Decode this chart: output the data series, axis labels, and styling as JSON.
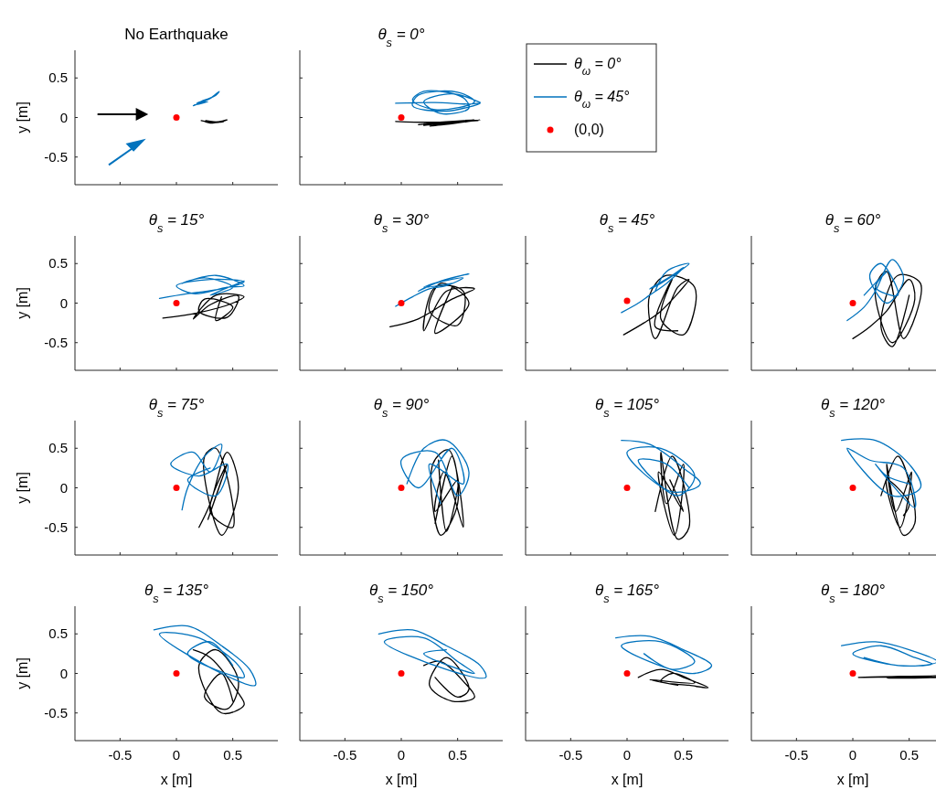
{
  "chart_data": [
    {
      "type": "line",
      "title": "No Earthquake",
      "ylabel": "y [m]",
      "xlim": [
        -0.9,
        0.9
      ],
      "ylim": [
        -0.85,
        0.85
      ],
      "xticks": [
        -0.5,
        0,
        0.5
      ],
      "yticks": [
        -0.5,
        0,
        0.5
      ],
      "tick_labels": "y",
      "series": [
        {
          "color": "#000000",
          "x": [
            0.22,
            0.3,
            0.4,
            0.45,
            0.35,
            0.25,
            0.3,
            0.42,
            0.38,
            0.26
          ],
          "values": [
            -0.04,
            -0.06,
            -0.05,
            -0.03,
            -0.06,
            -0.05,
            -0.07,
            -0.05,
            -0.06,
            -0.04
          ]
        },
        {
          "color": "#0072bd",
          "x": [
            0.15,
            0.22,
            0.3,
            0.38,
            0.35,
            0.25,
            0.18,
            0.28,
            0.2,
            0.16
          ],
          "values": [
            0.15,
            0.19,
            0.24,
            0.33,
            0.28,
            0.22,
            0.18,
            0.2,
            0.17,
            0.16
          ]
        },
        {
          "type": "scatter",
          "marker": "circle",
          "color": "#ff0000",
          "x": [
            0
          ],
          "values": [
            0
          ]
        }
      ]
    },
    {
      "type": "line",
      "title": "θ$_{s}$ = 0°",
      "xlim": [
        -0.9,
        0.9
      ],
      "ylim": [
        -0.85,
        0.85
      ],
      "xticks": [
        -0.5,
        0,
        0.5
      ],
      "yticks": [
        -0.5,
        0,
        0.5
      ],
      "tick_labels": false,
      "legend": "right",
      "series": [
        {
          "name": "θ$_{ω}$ = 0°",
          "color": "#000000",
          "x": [
            -0.05,
            0.3,
            0.65,
            0.2,
            0.6,
            0.15,
            0.7,
            0.25,
            0.55,
            0.2,
            0.68,
            0.35
          ],
          "values": [
            -0.05,
            -0.06,
            -0.03,
            -0.1,
            -0.04,
            -0.09,
            -0.03,
            -0.11,
            -0.05,
            -0.08,
            -0.04,
            -0.07
          ]
        },
        {
          "name": "θ$_{ω}$ = 45°",
          "color": "#0072bd",
          "x": [
            -0.05,
            0.3,
            0.6,
            0.7,
            0.4,
            0.1,
            0.15,
            0.5,
            0.65,
            0.3,
            0.1,
            0.2,
            0.55,
            0.6,
            0.35,
            0.2,
            0.45,
            0.7
          ],
          "values": [
            0.18,
            0.19,
            0.17,
            0.18,
            0.08,
            0.15,
            0.28,
            0.32,
            0.2,
            0.1,
            0.22,
            0.33,
            0.25,
            0.12,
            0.05,
            0.2,
            0.3,
            0.19
          ]
        },
        {
          "name": "(0,0)",
          "type": "scatter",
          "marker": "circle",
          "color": "#ff0000",
          "x": [
            0
          ],
          "values": [
            0
          ]
        }
      ]
    },
    {
      "type": "line",
      "title": "θ$_{s}$ = 15°",
      "ylabel": "y [m]",
      "xlim": [
        -0.9,
        0.9
      ],
      "ylim": [
        -0.85,
        0.85
      ],
      "xticks": [
        -0.5,
        0,
        0.5
      ],
      "yticks": [
        -0.5,
        0,
        0.5
      ],
      "tick_labels": "y",
      "series": [
        {
          "color": "#000000",
          "x": [
            -0.12,
            0.2,
            0.5,
            0.6,
            0.35,
            0.15,
            0.3,
            0.55,
            0.45,
            0.2,
            0.25,
            0.5,
            0.35,
            0.4
          ],
          "values": [
            -0.19,
            -0.12,
            0.0,
            0.08,
            0.1,
            -0.2,
            -0.02,
            0.09,
            -0.18,
            -0.1,
            0.05,
            -0.05,
            -0.22,
            0.08
          ]
        },
        {
          "color": "#0072bd",
          "x": [
            -0.15,
            0.1,
            0.4,
            0.6,
            0.3,
            0.0,
            0.15,
            0.45,
            0.6,
            0.35,
            0.05,
            0.25,
            0.5,
            0.3,
            0.6
          ],
          "values": [
            0.06,
            0.12,
            0.18,
            0.27,
            0.3,
            0.22,
            0.12,
            0.2,
            0.22,
            0.35,
            0.25,
            0.32,
            0.2,
            0.1,
            0.28
          ]
        },
        {
          "type": "scatter",
          "marker": "circle",
          "color": "#ff0000",
          "x": [
            0
          ],
          "values": [
            0
          ]
        }
      ]
    },
    {
      "type": "line",
      "title": "θ$_{s}$ = 30°",
      "xlim": [
        -0.9,
        0.9
      ],
      "ylim": [
        -0.85,
        0.85
      ],
      "xticks": [
        -0.5,
        0,
        0.5
      ],
      "yticks": [
        -0.5,
        0,
        0.5
      ],
      "tick_labels": false,
      "series": [
        {
          "color": "#000000",
          "x": [
            -0.1,
            0.15,
            0.45,
            0.65,
            0.4,
            0.2,
            0.3,
            0.55,
            0.5,
            0.25,
            0.35,
            0.6,
            0.3,
            0.45
          ],
          "values": [
            -0.3,
            -0.2,
            0.05,
            0.18,
            0.15,
            -0.35,
            0.2,
            0.15,
            -0.28,
            -0.1,
            0.25,
            0.0,
            -0.38,
            0.2
          ]
        },
        {
          "color": "#0072bd",
          "x": [
            -0.05,
            0.1,
            0.25,
            0.4,
            0.55,
            0.3,
            0.15,
            0.35,
            0.6,
            0.4,
            0.2,
            0.45
          ],
          "values": [
            -0.04,
            0.08,
            0.18,
            0.22,
            0.32,
            0.25,
            0.15,
            0.28,
            0.37,
            0.3,
            0.2,
            0.25
          ]
        },
        {
          "type": "scatter",
          "marker": "circle",
          "color": "#ff0000",
          "x": [
            0
          ],
          "values": [
            0
          ]
        }
      ]
    },
    {
      "type": "line",
      "title": "θ$_{s}$ = 45°",
      "xlim": [
        -0.9,
        0.9
      ],
      "ylim": [
        -0.85,
        0.85
      ],
      "xticks": [
        -0.5,
        0,
        0.5
      ],
      "yticks": [
        -0.5,
        0,
        0.5
      ],
      "tick_labels": false,
      "series": [
        {
          "color": "#000000",
          "x": [
            -0.03,
            0.15,
            0.3,
            0.55,
            0.45,
            0.25,
            0.2,
            0.35,
            0.6,
            0.5,
            0.3,
            0.4,
            0.25,
            0.45
          ],
          "values": [
            -0.4,
            -0.25,
            -0.1,
            0.3,
            0.2,
            -0.45,
            0.1,
            0.35,
            0.2,
            -0.4,
            -0.2,
            0.3,
            -0.3,
            -0.35
          ]
        },
        {
          "color": "#0072bd",
          "x": [
            -0.05,
            0.1,
            0.2,
            0.35,
            0.5,
            0.4,
            0.2,
            0.3,
            0.55,
            0.35,
            0.25
          ],
          "values": [
            -0.12,
            0.0,
            0.1,
            0.25,
            0.45,
            0.35,
            0.18,
            0.25,
            0.5,
            0.4,
            0.15
          ]
        },
        {
          "type": "scatter",
          "marker": "circle",
          "color": "#ff0000",
          "x": [
            0
          ],
          "values": [
            0.03
          ]
        }
      ]
    },
    {
      "type": "line",
      "title": "θ$_{s}$ = 60°",
      "xlim": [
        -0.9,
        0.9
      ],
      "ylim": [
        -0.85,
        0.85
      ],
      "xticks": [
        -0.5,
        0,
        0.5
      ],
      "yticks": [
        -0.5,
        0,
        0.5
      ],
      "tick_labels": false,
      "series": [
        {
          "color": "#000000",
          "x": [
            0.0,
            0.15,
            0.3,
            0.5,
            0.55,
            0.35,
            0.2,
            0.3,
            0.45,
            0.6,
            0.4,
            0.25,
            0.35,
            0.5
          ],
          "values": [
            -0.45,
            -0.3,
            -0.1,
            0.3,
            0.05,
            -0.5,
            0.2,
            0.4,
            -0.45,
            0.25,
            0.35,
            -0.3,
            -0.55,
            0.1
          ]
        },
        {
          "color": "#0072bd",
          "x": [
            -0.05,
            0.1,
            0.2,
            0.35,
            0.45,
            0.3,
            0.15,
            0.25,
            0.4,
            0.2,
            0.3,
            0.1
          ],
          "values": [
            -0.22,
            -0.05,
            0.15,
            0.55,
            0.3,
            0.0,
            0.35,
            0.5,
            0.1,
            0.2,
            0.4,
            0.1
          ]
        },
        {
          "type": "scatter",
          "marker": "circle",
          "color": "#ff0000",
          "x": [
            0
          ],
          "values": [
            0
          ]
        }
      ]
    },
    {
      "type": "line",
      "title": "θ$_{s}$ = 75°",
      "ylabel": "y [m]",
      "xlim": [
        -0.9,
        0.9
      ],
      "ylim": [
        -0.85,
        0.85
      ],
      "xticks": [
        -0.5,
        0,
        0.5
      ],
      "yticks": [
        -0.5,
        0,
        0.5
      ],
      "tick_labels": "y",
      "series": [
        {
          "color": "#000000",
          "x": [
            0.2,
            0.3,
            0.45,
            0.55,
            0.4,
            0.25,
            0.35,
            0.5,
            0.3,
            0.45,
            0.28,
            0.4
          ],
          "values": [
            -0.5,
            -0.2,
            0.45,
            0.0,
            -0.6,
            0.4,
            0.5,
            -0.5,
            -0.3,
            0.3,
            -0.4,
            0.1
          ]
        },
        {
          "color": "#0072bd",
          "x": [
            0.05,
            0.1,
            0.25,
            0.4,
            0.3,
            0.15,
            -0.05,
            0.2,
            0.45,
            0.35,
            0.1,
            0.3
          ],
          "values": [
            -0.28,
            0.0,
            0.4,
            0.55,
            0.2,
            0.45,
            0.3,
            0.15,
            0.3,
            -0.1,
            0.1,
            0.25
          ]
        },
        {
          "type": "scatter",
          "marker": "circle",
          "color": "#ff0000",
          "x": [
            0
          ],
          "values": [
            0
          ]
        }
      ]
    },
    {
      "type": "line",
      "title": "θ$_{s}$ = 90°",
      "xlim": [
        -0.9,
        0.9
      ],
      "ylim": [
        -0.85,
        0.85
      ],
      "xticks": [
        -0.5,
        0,
        0.5
      ],
      "yticks": [
        -0.5,
        0,
        0.5
      ],
      "tick_labels": false,
      "series": [
        {
          "color": "#000000",
          "x": [
            0.3,
            0.45,
            0.5,
            0.35,
            0.28,
            0.42,
            0.55,
            0.38,
            0.3,
            0.5,
            0.4,
            0.33
          ],
          "values": [
            -0.45,
            0.4,
            -0.2,
            -0.6,
            0.3,
            0.48,
            -0.5,
            0.2,
            -0.3,
            0.1,
            -0.55,
            0.35
          ]
        },
        {
          "color": "#0072bd",
          "x": [
            0.05,
            0.2,
            0.4,
            0.6,
            0.5,
            0.3,
            0.0,
            0.15,
            0.45,
            0.55,
            0.25,
            0.35
          ],
          "values": [
            0.05,
            0.5,
            0.6,
            0.2,
            -0.1,
            0.45,
            0.35,
            0.0,
            0.5,
            0.05,
            0.3,
            -0.2
          ]
        },
        {
          "type": "scatter",
          "marker": "circle",
          "color": "#ff0000",
          "x": [
            0
          ],
          "values": [
            0
          ]
        }
      ]
    },
    {
      "type": "line",
      "title": "θ$_{s}$ = 105°",
      "xlim": [
        -0.9,
        0.9
      ],
      "ylim": [
        -0.85,
        0.85
      ],
      "xticks": [
        -0.5,
        0,
        0.5
      ],
      "yticks": [
        -0.5,
        0,
        0.5
      ],
      "tick_labels": false,
      "series": [
        {
          "color": "#000000",
          "x": [
            0.25,
            0.4,
            0.55,
            0.45,
            0.3,
            0.35,
            0.5,
            0.42,
            0.28,
            0.5,
            0.38
          ],
          "values": [
            -0.3,
            0.4,
            -0.5,
            -0.65,
            0.45,
            -0.2,
            0.3,
            -0.6,
            0.2,
            -0.3,
            0.1
          ]
        },
        {
          "color": "#0072bd",
          "x": [
            -0.05,
            0.2,
            0.5,
            0.65,
            0.4,
            0.0,
            0.3,
            0.6,
            0.45,
            0.1,
            0.35,
            0.55
          ],
          "values": [
            0.6,
            0.55,
            0.25,
            0.05,
            -0.05,
            0.45,
            0.5,
            0.15,
            -0.1,
            0.35,
            0.3,
            0.0
          ]
        },
        {
          "type": "scatter",
          "marker": "circle",
          "color": "#ff0000",
          "x": [
            0
          ],
          "values": [
            0
          ]
        }
      ]
    },
    {
      "type": "line",
      "title": "θ$_{s}$ = 120°",
      "xlim": [
        -0.9,
        0.9
      ],
      "ylim": [
        -0.85,
        0.85
      ],
      "xticks": [
        -0.5,
        0,
        0.5
      ],
      "yticks": [
        -0.5,
        0,
        0.5
      ],
      "tick_labels": false,
      "series": [
        {
          "color": "#000000",
          "x": [
            0.25,
            0.4,
            0.55,
            0.45,
            0.3,
            0.38,
            0.52,
            0.42,
            0.3,
            0.5,
            0.45
          ],
          "values": [
            -0.1,
            0.4,
            -0.45,
            -0.6,
            0.3,
            -0.3,
            0.2,
            -0.5,
            0.1,
            -0.2,
            -0.35
          ]
        },
        {
          "color": "#0072bd",
          "x": [
            -0.1,
            0.2,
            0.5,
            0.6,
            0.35,
            -0.05,
            0.15,
            0.45,
            0.55,
            0.2,
            0.3,
            0.5
          ],
          "values": [
            0.6,
            0.6,
            0.3,
            0.0,
            -0.1,
            0.5,
            0.35,
            0.25,
            -0.25,
            0.3,
            0.15,
            0.05
          ]
        },
        {
          "type": "scatter",
          "marker": "circle",
          "color": "#ff0000",
          "x": [
            0
          ],
          "values": [
            0
          ]
        }
      ]
    },
    {
      "type": "line",
      "title": "θ$_{s}$ = 135°",
      "xlabel": "x [m]",
      "ylabel": "y [m]",
      "xlim": [
        -0.9,
        0.9
      ],
      "ylim": [
        -0.85,
        0.85
      ],
      "xticks": [
        -0.5,
        0,
        0.5
      ],
      "yticks": [
        -0.5,
        0,
        0.5
      ],
      "series": [
        {
          "color": "#000000",
          "x": [
            0.15,
            0.3,
            0.55,
            0.6,
            0.4,
            0.2,
            0.35,
            0.55,
            0.45,
            0.25,
            0.4,
            0.5
          ],
          "values": [
            0.3,
            0.2,
            -0.25,
            -0.4,
            -0.5,
            0.1,
            0.3,
            -0.1,
            -0.45,
            -0.3,
            0.0,
            -0.35
          ]
        },
        {
          "color": "#0072bd",
          "x": [
            -0.2,
            0.1,
            0.4,
            0.65,
            0.7,
            0.4,
            -0.15,
            0.2,
            0.55,
            0.6,
            0.1,
            0.3,
            0.5
          ],
          "values": [
            0.55,
            0.6,
            0.35,
            0.05,
            -0.15,
            0.0,
            0.5,
            0.45,
            0.1,
            -0.05,
            0.25,
            0.4,
            0.1
          ]
        },
        {
          "type": "scatter",
          "marker": "circle",
          "color": "#ff0000",
          "x": [
            0
          ],
          "values": [
            0
          ]
        }
      ]
    },
    {
      "type": "line",
      "title": "θ$_{s}$ = 150°",
      "xlabel": "x [m]",
      "xlim": [
        -0.9,
        0.9
      ],
      "ylim": [
        -0.85,
        0.85
      ],
      "xticks": [
        -0.5,
        0,
        0.5
      ],
      "yticks": [
        -0.5,
        0,
        0.5
      ],
      "tick_labels": "x",
      "series": [
        {
          "color": "#000000",
          "x": [
            0.2,
            0.35,
            0.55,
            0.65,
            0.45,
            0.25,
            0.4,
            0.6,
            0.5,
            0.3
          ],
          "values": [
            0.1,
            0.15,
            -0.1,
            -0.3,
            -0.35,
            -0.15,
            0.2,
            -0.2,
            -0.3,
            -0.05
          ]
        },
        {
          "color": "#0072bd",
          "x": [
            -0.2,
            0.1,
            0.4,
            0.7,
            0.75,
            0.4,
            -0.15,
            0.2,
            0.5,
            0.65,
            0.2,
            0.4
          ],
          "values": [
            0.5,
            0.55,
            0.35,
            0.1,
            -0.05,
            0.05,
            0.4,
            0.45,
            0.15,
            0.0,
            0.25,
            0.3
          ]
        },
        {
          "type": "scatter",
          "marker": "circle",
          "color": "#ff0000",
          "x": [
            0
          ],
          "values": [
            0
          ]
        }
      ]
    },
    {
      "type": "line",
      "title": "θ$_{s}$ = 165°",
      "xlabel": "x [m]",
      "xlim": [
        -0.9,
        0.9
      ],
      "ylim": [
        -0.85,
        0.85
      ],
      "xticks": [
        -0.5,
        0,
        0.5
      ],
      "yticks": [
        -0.5,
        0,
        0.5
      ],
      "tick_labels": "x",
      "series": [
        {
          "color": "#000000",
          "x": [
            0.1,
            0.3,
            0.5,
            0.72,
            0.55,
            0.3,
            0.4,
            0.6,
            0.2,
            0.45
          ],
          "values": [
            -0.05,
            0.05,
            -0.05,
            -0.18,
            -0.15,
            -0.1,
            0.0,
            -0.12,
            -0.08,
            -0.15
          ]
        },
        {
          "color": "#0072bd",
          "x": [
            -0.1,
            0.2,
            0.5,
            0.75,
            0.6,
            0.2,
            -0.05,
            0.3,
            0.6,
            0.4,
            0.15
          ],
          "values": [
            0.45,
            0.47,
            0.3,
            0.1,
            0.0,
            0.15,
            0.35,
            0.4,
            0.15,
            0.05,
            0.25
          ]
        },
        {
          "type": "scatter",
          "marker": "circle",
          "color": "#ff0000",
          "x": [
            0
          ],
          "values": [
            0
          ]
        }
      ]
    },
    {
      "type": "line",
      "title": "θ$_{s}$ = 180°",
      "xlabel": "x [m]",
      "xlim": [
        -0.9,
        0.9
      ],
      "ylim": [
        -0.85,
        0.85
      ],
      "xticks": [
        -0.5,
        0,
        0.5
      ],
      "yticks": [
        -0.5,
        0,
        0.5
      ],
      "tick_labels": "x",
      "series": [
        {
          "color": "#000000",
          "x": [
            0.05,
            0.4,
            0.8,
            0.3,
            0.75,
            0.1,
            0.6
          ],
          "values": [
            -0.05,
            -0.04,
            -0.05,
            -0.06,
            -0.03,
            -0.05,
            -0.04
          ]
        },
        {
          "color": "#0072bd",
          "x": [
            -0.1,
            0.2,
            0.5,
            0.75,
            0.6,
            0.3,
            0.0,
            0.25,
            0.55,
            0.7,
            0.4,
            0.1
          ],
          "values": [
            0.35,
            0.4,
            0.3,
            0.15,
            0.1,
            0.12,
            0.25,
            0.35,
            0.2,
            0.12,
            0.1,
            0.2
          ]
        },
        {
          "type": "scatter",
          "marker": "circle",
          "color": "#ff0000",
          "x": [
            0
          ],
          "values": [
            0
          ]
        }
      ]
    }
  ]
}
